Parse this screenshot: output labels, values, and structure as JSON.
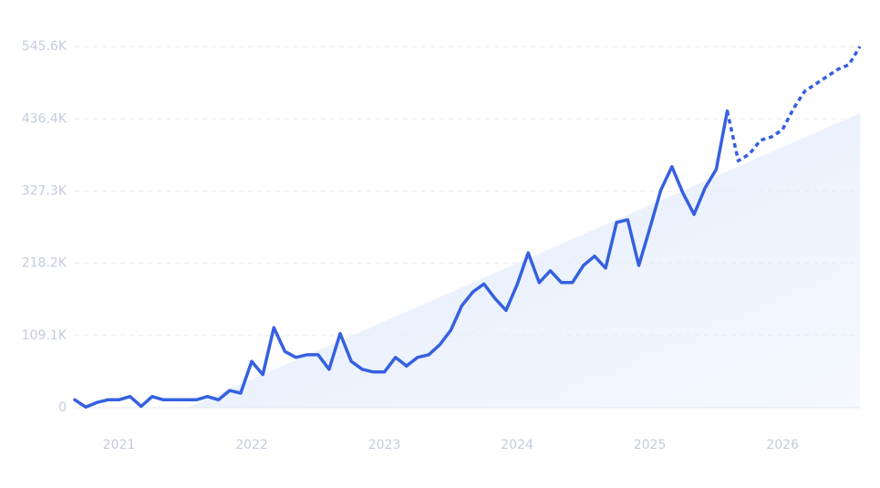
{
  "chart_data": {
    "type": "line",
    "categories": [
      null,
      null,
      null,
      null,
      "2021",
      null,
      null,
      null,
      null,
      null,
      null,
      null,
      null,
      null,
      null,
      null,
      "2022",
      null,
      null,
      null,
      null,
      null,
      null,
      null,
      null,
      null,
      null,
      null,
      "2023",
      null,
      null,
      null,
      null,
      null,
      null,
      null,
      null,
      null,
      null,
      null,
      "2024",
      null,
      null,
      null,
      null,
      null,
      null,
      null,
      null,
      null,
      null,
      null,
      "2025",
      null,
      null,
      null,
      null,
      null,
      null,
      null,
      null,
      null,
      null,
      null,
      "2026",
      null,
      null,
      null,
      null,
      null,
      null,
      null
    ],
    "series": [
      {
        "color": "#3560e0",
        "dashed": false,
        "values": [
          12000,
          1000,
          8000,
          12000,
          12000,
          17000,
          2000,
          17000,
          12000,
          12000,
          12000,
          12000,
          17000,
          12000,
          26000,
          22000,
          70000,
          50000,
          121000,
          85000,
          76000,
          80000,
          80000,
          58000,
          112000,
          70000,
          58000,
          54000,
          54000,
          76000,
          63000,
          76000,
          80000,
          95000,
          117000,
          154000,
          175000,
          187000,
          165000,
          147000,
          186000,
          234000,
          189000,
          207000,
          189000,
          189000,
          215000,
          229000,
          211000,
          280000,
          284000,
          215000,
          271000,
          329000,
          364000,
          324000,
          292000,
          332000,
          360000,
          448000,
          null,
          null,
          null,
          null,
          null,
          null,
          null,
          null,
          null,
          null,
          null,
          null
        ]
      },
      {
        "color": "#3560e0",
        "dashed": true,
        "values": [
          null,
          null,
          null,
          null,
          null,
          null,
          null,
          null,
          null,
          null,
          null,
          null,
          null,
          null,
          null,
          null,
          null,
          null,
          null,
          null,
          null,
          null,
          null,
          null,
          null,
          null,
          null,
          null,
          null,
          null,
          null,
          null,
          null,
          null,
          null,
          null,
          null,
          null,
          null,
          null,
          null,
          null,
          null,
          null,
          null,
          null,
          null,
          null,
          null,
          null,
          null,
          null,
          null,
          null,
          null,
          null,
          null,
          null,
          null,
          448000,
          373000,
          383000,
          404000,
          409000,
          420000,
          452000,
          478000,
          489000,
          500000,
          511000,
          518000,
          545600
        ]
      }
    ],
    "ylim": [
      0,
      545600
    ],
    "yticks": [
      0,
      {
        "value": 109100,
        "label": "109.1K"
      },
      {
        "value": 218200,
        "label": "218.2K"
      },
      {
        "value": 327300,
        "label": "327.3K"
      },
      {
        "value": 436400,
        "label": "436.4K"
      },
      {
        "value": 545600,
        "label": "545.6K"
      }
    ],
    "grid": true
  }
}
